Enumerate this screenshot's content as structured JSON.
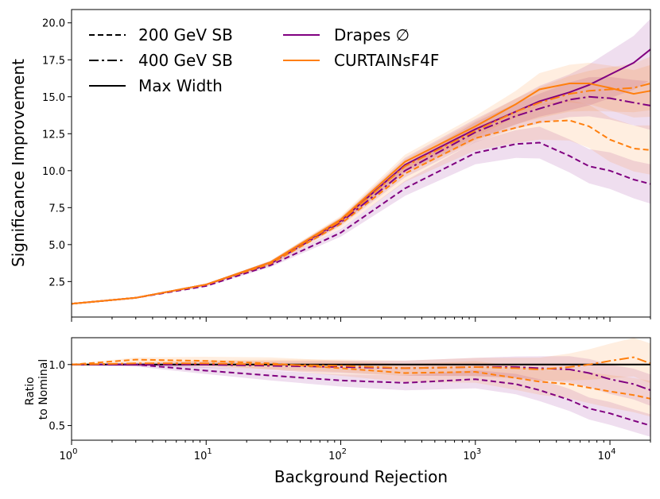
{
  "chart_data": [
    {
      "type": "line",
      "panel": "main",
      "ylabel": "Significance Improvement",
      "xscale": "log",
      "xlim": [
        1,
        20000
      ],
      "ylim": [
        0.1,
        20.9
      ],
      "yticks": [
        2.5,
        5.0,
        7.5,
        10.0,
        12.5,
        15.0,
        17.5,
        20.0
      ],
      "ytick_labels": [
        "2.5",
        "5.0",
        "7.5",
        "10.0",
        "12.5",
        "15.0",
        "17.5",
        "20.0"
      ],
      "legend": {
        "position": "top-left",
        "entries": [
          {
            "label": "200 GeV SB",
            "style": "dashed",
            "color": "#000000"
          },
          {
            "label": "400 GeV SB",
            "style": "dashdot",
            "color": "#000000"
          },
          {
            "label": "Max Width",
            "style": "solid",
            "color": "#000000"
          },
          {
            "label": "Drapes ∅",
            "style": "solid",
            "color": "#800080"
          },
          {
            "label": "CURTAINsF4F",
            "style": "solid",
            "color": "#ff7f0e"
          }
        ]
      },
      "x": [
        1,
        3,
        10,
        30,
        100,
        300,
        1000,
        2000,
        3000,
        5000,
        7000,
        10000,
        15000,
        20000
      ],
      "series": [
        {
          "name": "Drapes ∅ Max Width",
          "color": "#800080",
          "style": "solid",
          "band": 0.07,
          "values": [
            1.0,
            1.4,
            2.3,
            3.8,
            6.6,
            10.4,
            12.8,
            14.0,
            14.7,
            15.3,
            15.8,
            16.5,
            17.3,
            18.2
          ]
        },
        {
          "name": "Drapes ∅ 400 GeV SB",
          "color": "#800080",
          "style": "dashdot",
          "band": 0.07,
          "values": [
            1.0,
            1.4,
            2.3,
            3.7,
            6.5,
            10.0,
            12.6,
            13.7,
            14.2,
            14.8,
            15.0,
            14.9,
            14.6,
            14.4
          ]
        },
        {
          "name": "Drapes ∅ 200 GeV SB",
          "color": "#800080",
          "style": "dashed",
          "band": 0.09,
          "values": [
            1.0,
            1.4,
            2.2,
            3.6,
            5.8,
            8.8,
            11.2,
            11.8,
            11.9,
            11.0,
            10.3,
            10.0,
            9.4,
            9.1
          ]
        },
        {
          "name": "CURTAINsF4F Max Width",
          "color": "#ff7f0e",
          "style": "solid",
          "band": 0.07,
          "values": [
            1.0,
            1.4,
            2.3,
            3.8,
            6.7,
            10.6,
            13.0,
            14.5,
            15.5,
            15.9,
            15.9,
            15.6,
            15.2,
            15.4
          ]
        },
        {
          "name": "CURTAINsF4F 400 GeV SB",
          "color": "#ff7f0e",
          "style": "dashdot",
          "band": 0.07,
          "values": [
            1.0,
            1.4,
            2.3,
            3.8,
            6.6,
            10.3,
            12.7,
            14.0,
            14.6,
            15.2,
            15.4,
            15.5,
            15.6,
            15.9
          ]
        },
        {
          "name": "CURTAINsF4F 200 GeV SB",
          "color": "#ff7f0e",
          "style": "dashed",
          "band": 0.09,
          "values": [
            1.0,
            1.4,
            2.3,
            3.7,
            6.4,
            9.8,
            12.2,
            12.9,
            13.3,
            13.4,
            13.0,
            12.1,
            11.5,
            11.4
          ]
        }
      ]
    },
    {
      "type": "line",
      "panel": "ratio",
      "ylabel_line1": "Ratio",
      "ylabel_line2": "to Nominal",
      "xlabel": "Background Rejection",
      "xscale": "log",
      "xlim": [
        1,
        20000
      ],
      "ylim": [
        0.38,
        1.22
      ],
      "yticks": [
        0.5,
        1.0
      ],
      "ytick_labels": [
        "0.5",
        "1.0"
      ],
      "reference_line": 1.0,
      "xticks": [
        1,
        10,
        100,
        1000,
        10000
      ],
      "xtick_bases": [
        "10",
        "10",
        "10",
        "10",
        "10"
      ],
      "xtick_exponents": [
        "0",
        "1",
        "2",
        "3",
        "4"
      ],
      "x": [
        1,
        3,
        10,
        30,
        100,
        300,
        1000,
        2000,
        3000,
        5000,
        7000,
        10000,
        15000,
        20000
      ],
      "series": [
        {
          "name": "Drapes ∅ 400 GeV SB",
          "color": "#800080",
          "style": "dashdot",
          "band": 0.08,
          "values": [
            1.0,
            1.0,
            1.0,
            0.99,
            0.98,
            0.97,
            0.98,
            0.98,
            0.97,
            0.96,
            0.93,
            0.88,
            0.84,
            0.79
          ]
        },
        {
          "name": "Drapes ∅ 200 GeV SB",
          "color": "#800080",
          "style": "dashed",
          "band": 0.09,
          "values": [
            1.0,
            1.0,
            0.95,
            0.91,
            0.87,
            0.85,
            0.88,
            0.84,
            0.79,
            0.71,
            0.64,
            0.6,
            0.54,
            0.5
          ]
        },
        {
          "name": "CURTAINsF4F 400 GeV SB",
          "color": "#ff7f0e",
          "style": "dashdot",
          "band": 0.08,
          "values": [
            1.0,
            1.01,
            1.01,
            1.0,
            0.99,
            0.97,
            0.98,
            0.97,
            0.96,
            0.98,
            1.0,
            1.03,
            1.06,
            1.01
          ]
        },
        {
          "name": "CURTAINsF4F 200 GeV SB",
          "color": "#ff7f0e",
          "style": "dashed",
          "band": 0.1,
          "values": [
            1.0,
            1.04,
            1.03,
            1.01,
            0.97,
            0.93,
            0.94,
            0.89,
            0.86,
            0.84,
            0.81,
            0.78,
            0.75,
            0.72
          ]
        }
      ]
    }
  ]
}
